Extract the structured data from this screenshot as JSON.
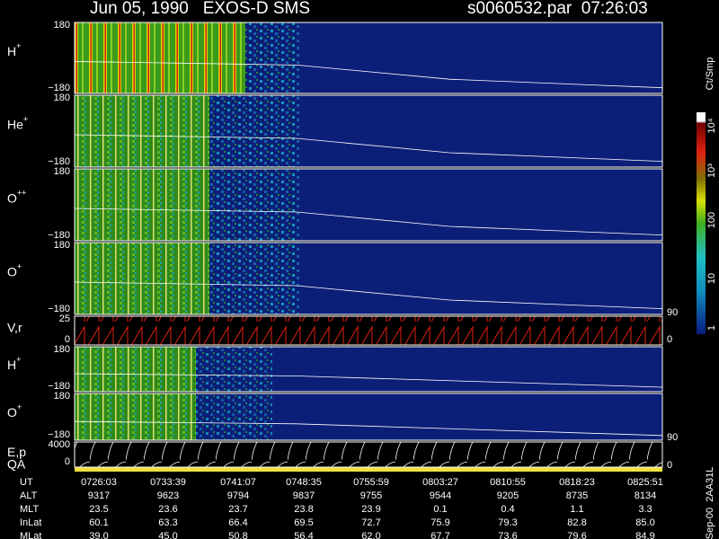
{
  "header": {
    "title": "Jun 05, 1990   EXOS-D SMS",
    "file": "s0060532.par  07:26:03"
  },
  "panels": [
    {
      "label": "H",
      "sup": "+",
      "top": "180",
      "bottom": "−180"
    },
    {
      "label": "He",
      "sup": "+",
      "top": "180",
      "bottom": "−180"
    },
    {
      "label": "O",
      "sup": "++",
      "top": "180",
      "bottom": "−180"
    },
    {
      "label": "O",
      "sup": "+",
      "top": "180",
      "bottom": "−180"
    },
    {
      "label": "V,r",
      "sup": "",
      "top": "25",
      "bottom": "0"
    },
    {
      "label": "H",
      "sup": "+",
      "top": "180",
      "bottom": "−180"
    },
    {
      "label": "O",
      "sup": "+",
      "top": "180",
      "bottom": "−180"
    },
    {
      "label": "E,p",
      "sup": "",
      "top": "4000",
      "bottom": "0"
    }
  ],
  "qa_label": "QA",
  "right_axis": [
    "90",
    "0",
    "90",
    "0"
  ],
  "colorbar": {
    "unit": "Ct/Smp",
    "ticks": [
      "10⁴",
      "10³",
      "100",
      "10",
      "1"
    ]
  },
  "table": {
    "rows": [
      [
        "UT",
        "0726:03",
        "0733:39",
        "0741:07",
        "0748:35",
        "0755:59",
        "0803:27",
        "0810:55",
        "0818:23",
        "0825:51"
      ],
      [
        "ALT",
        "9317",
        "9623",
        "9794",
        "9837",
        "9755",
        "9544",
        "9205",
        "8735",
        "8134"
      ],
      [
        "MLT",
        "23.5",
        "23.6",
        "23.7",
        "23.8",
        "23.9",
        "0.1",
        "0.4",
        "1.1",
        "3.3"
      ],
      [
        "InLat",
        "60.1",
        "63.3",
        "66.4",
        "69.5",
        "72.7",
        "75.9",
        "79.3",
        "82.8",
        "85.0"
      ],
      [
        "MLat",
        "39.0",
        "45.0",
        "50.8",
        "56.4",
        "62.0",
        "67.7",
        "73.6",
        "79.6",
        "84.9"
      ]
    ]
  },
  "footer_id": "Sep-00  2AA31L"
}
